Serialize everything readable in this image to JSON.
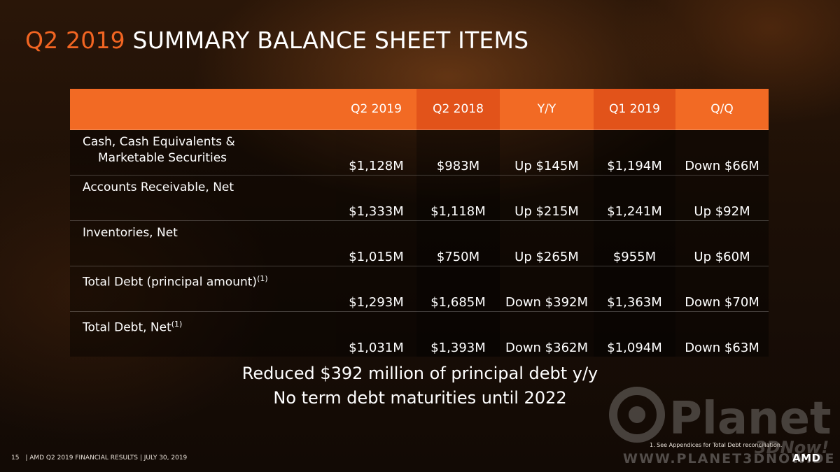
{
  "title": {
    "accent": "Q2 2019",
    "rest": "SUMMARY BALANCE SHEET ITEMS"
  },
  "table": {
    "headers": [
      "",
      "Q2 2019",
      "Q2 2018",
      "Y/Y",
      "Q1 2019",
      "Q/Q"
    ],
    "rows": [
      {
        "label_line1": "Cash, Cash Equivalents &",
        "label_line2": "Marketable Securities",
        "label_sup": "",
        "values": [
          "$1,128M",
          "$983M",
          "Up $145M",
          "$1,194M",
          "Down $66M"
        ]
      },
      {
        "label_line1": "Accounts Receivable, Net",
        "label_line2": "",
        "label_sup": "",
        "values": [
          "$1,333M",
          "$1,118M",
          "Up $215M",
          "$1,241M",
          "Up $92M"
        ]
      },
      {
        "label_line1": "Inventories, Net",
        "label_line2": "",
        "label_sup": "",
        "values": [
          "$1,015M",
          "$750M",
          "Up $265M",
          "$955M",
          "Up $60M"
        ]
      },
      {
        "label_line1": "Total Debt (principal amount)",
        "label_line2": "",
        "label_sup": "(1)",
        "values": [
          "$1,293M",
          "$1,685M",
          "Down $392M",
          "$1,363M",
          "Down $70M"
        ]
      },
      {
        "label_line1": "Total Debt, Net",
        "label_line2": "",
        "label_sup": "(1)",
        "values": [
          "$1,031M",
          "$1,393M",
          "Down $362M",
          "$1,094M",
          "Down $63M"
        ]
      }
    ]
  },
  "summary": {
    "line1": "Reduced $392 million of principal debt y/y",
    "line2": "No term debt maturities until 2022"
  },
  "footnote": "1.    See Appendices for Total Debt reconciliation.",
  "footer": {
    "page_number": "15",
    "text": "| AMD Q2 2019 FINANCIAL RESULTS | JULY 30, 2019"
  },
  "brand": {
    "logo": "AMD"
  },
  "watermark": {
    "line1": "Planet",
    "line2": "3DNow!",
    "url": "WWW.PLANET3DNOW.DE"
  },
  "colors": {
    "accent": "#f26522",
    "header_bg": "#f26a24",
    "header_alt": "#e2531a"
  }
}
